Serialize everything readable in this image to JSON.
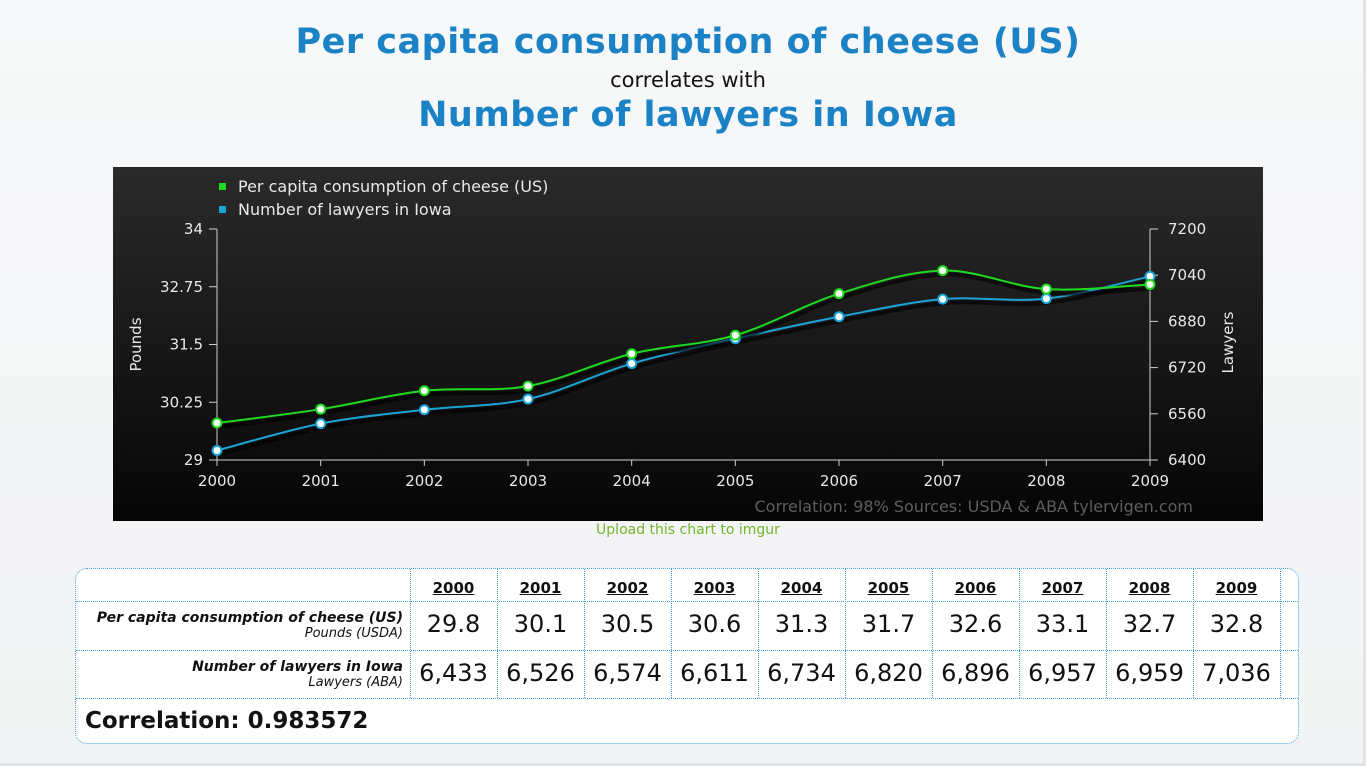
{
  "header": {
    "title": "Per capita consumption of cheese (US)",
    "connector": "correlates with",
    "subtitle": "Number of lawyers in Iowa"
  },
  "chart_data": {
    "type": "line",
    "x": [
      2000,
      2001,
      2002,
      2003,
      2004,
      2005,
      2006,
      2007,
      2008,
      2009
    ],
    "series": [
      {
        "name": "Per capita consumption of cheese (US)",
        "axis": "left",
        "color": "#1fd91f",
        "values": [
          29.8,
          30.1,
          30.5,
          30.6,
          31.3,
          31.7,
          32.6,
          33.1,
          32.7,
          32.8
        ]
      },
      {
        "name": "Number of lawyers in Iowa",
        "axis": "right",
        "color": "#1ba3d6",
        "values": [
          6433,
          6526,
          6574,
          6611,
          6734,
          6820,
          6896,
          6957,
          6959,
          7036
        ]
      }
    ],
    "ylabel_left": "Pounds",
    "ylabel_right": "Lawyers",
    "ylim_left": [
      29,
      34
    ],
    "ylim_right": [
      6400,
      7200
    ],
    "yticks_left": [
      "34",
      "32.75",
      "31.5",
      "30.25",
      "29"
    ],
    "yticks_right": [
      "7200",
      "7040",
      "6880",
      "6720",
      "6560",
      "6400"
    ],
    "xticks": [
      "2000",
      "2001",
      "2002",
      "2003",
      "2004",
      "2005",
      "2006",
      "2007",
      "2008",
      "2009"
    ],
    "legend_position": "top-left",
    "footer": "Correlation: 98%    Sources: USDA & ABA   tylervigen.com",
    "background": "#111111"
  },
  "upload_link": "Upload this chart to imgur",
  "table": {
    "years": [
      "2000",
      "2001",
      "2002",
      "2003",
      "2004",
      "2005",
      "2006",
      "2007",
      "2008",
      "2009"
    ],
    "rows": [
      {
        "label": "Per capita consumption of cheese (US)",
        "sublabel": "Pounds (USDA)",
        "values": [
          "29.8",
          "30.1",
          "30.5",
          "30.6",
          "31.3",
          "31.7",
          "32.6",
          "33.1",
          "32.7",
          "32.8"
        ]
      },
      {
        "label": "Number of lawyers in Iowa",
        "sublabel": "Lawyers (ABA)",
        "values": [
          "6,433",
          "6,526",
          "6,574",
          "6,611",
          "6,734",
          "6,820",
          "6,896",
          "6,957",
          "6,959",
          "7,036"
        ]
      }
    ],
    "correlation": "Correlation: 0.983572"
  }
}
